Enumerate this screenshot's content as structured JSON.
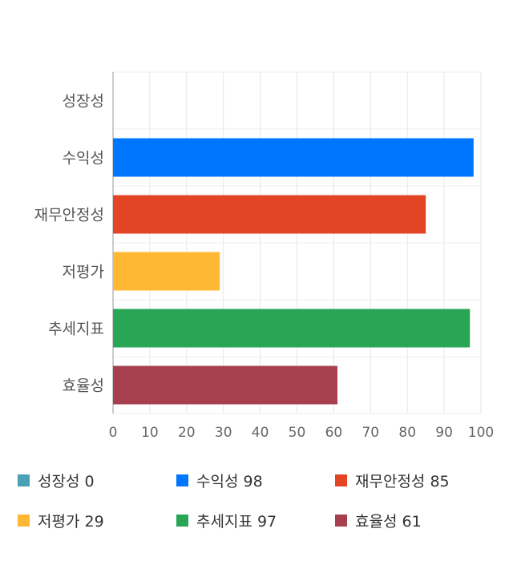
{
  "chart_data": {
    "type": "bar",
    "orientation": "horizontal",
    "categories": [
      "성장성",
      "수익성",
      "재무안정성",
      "저평가",
      "추세지표",
      "효율성"
    ],
    "values": [
      0,
      98,
      85,
      29,
      97,
      61
    ],
    "colors": [
      "#4aa0b5",
      "#0076ff",
      "#e24424",
      "#ffb833",
      "#28a656",
      "#a6404e"
    ],
    "xlim": [
      0,
      100
    ],
    "xticks": [
      0,
      10,
      20,
      30,
      40,
      50,
      60,
      70,
      80,
      90,
      100
    ],
    "grid": true,
    "legend_position": "bottom",
    "legend": [
      "성장성 0",
      "수익성 98",
      "재무안정성 85",
      "저평가 29",
      "추세지표 97",
      "효율성 61"
    ]
  }
}
